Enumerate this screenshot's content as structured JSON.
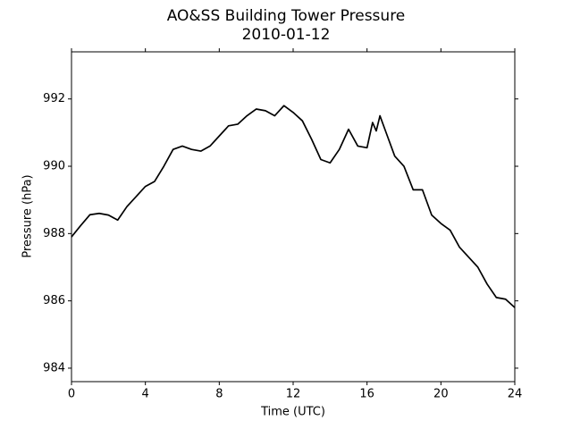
{
  "chart_data": {
    "type": "line",
    "title": "AO&SS Building Tower Pressure",
    "subtitle": "2010-01-12",
    "x_label": "Time (UTC)",
    "y_label": "Pressure (hPa)",
    "x": [
      0,
      0.5,
      1,
      1.5,
      2,
      2.5,
      3,
      3.5,
      4,
      4.5,
      5,
      5.5,
      6,
      6.5,
      7,
      7.5,
      8,
      8.5,
      9,
      9.5,
      10,
      10.5,
      11,
      11.5,
      12,
      12.5,
      13,
      13.5,
      14,
      14.5,
      15,
      15.5,
      16,
      16.3,
      16.5,
      16.7,
      17,
      17.5,
      18,
      18.5,
      19,
      19.5,
      20,
      20.5,
      21,
      21.5,
      22,
      22.5,
      23,
      23.5,
      24
    ],
    "values": [
      987.9,
      988.24,
      988.56,
      988.6,
      988.55,
      988.4,
      988.8,
      989.1,
      989.4,
      989.55,
      990.0,
      990.5,
      990.6,
      990.5,
      990.45,
      990.6,
      990.9,
      991.2,
      991.25,
      991.5,
      991.7,
      991.65,
      991.5,
      991.8,
      991.6,
      991.35,
      990.8,
      990.2,
      990.1,
      990.5,
      991.1,
      990.6,
      990.55,
      991.3,
      991.05,
      991.5,
      991.05,
      990.3,
      990.0,
      989.3,
      989.3,
      988.55,
      988.3,
      988.1,
      987.6,
      987.3,
      987.0,
      986.5,
      986.1,
      986.05,
      985.8
    ],
    "color": "#000000",
    "xlim": [
      0,
      24
    ],
    "ylim": [
      983.6,
      993.4
    ],
    "xticks": [
      0,
      4,
      8,
      12,
      16,
      20,
      24
    ],
    "yticks": [
      984,
      986,
      988,
      990,
      992
    ]
  }
}
